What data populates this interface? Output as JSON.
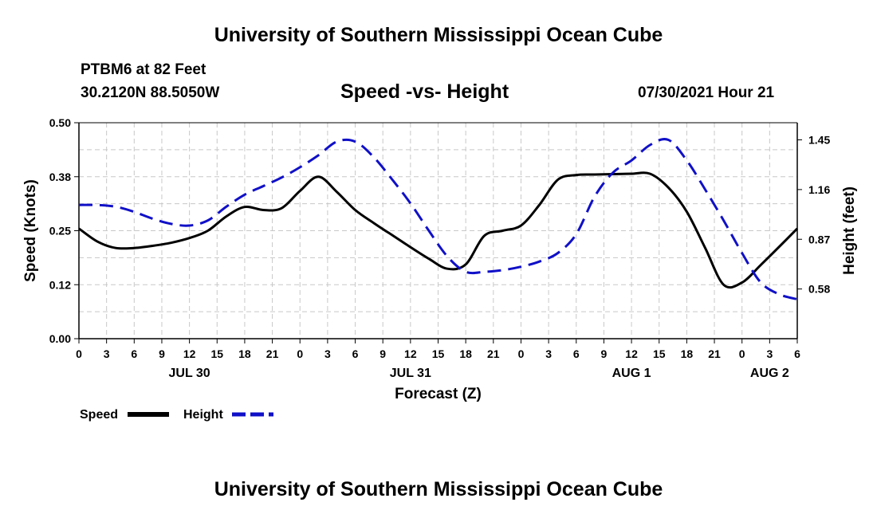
{
  "header": {
    "title": "University of Southern Mississippi Ocean Cube",
    "station": "PTBM6 at 82 Feet",
    "coords": "30.2120N  88.5050W",
    "chart_title": "Speed -vs- Height",
    "datetime": "07/30/2021 Hour 21"
  },
  "footer": {
    "title": "University of Southern Mississippi Ocean Cube"
  },
  "colors": {
    "speed": "#000000",
    "height": "#1010c8",
    "grid": "#c8c8c8"
  },
  "chart_data": {
    "type": "line",
    "title": "Speed -vs- Height",
    "xlabel": "Forecast (Z)",
    "ylabel_left": "Speed (Knots)",
    "ylabel_right": "Height (feet)",
    "x_unit": "hours from 00Z Jul 30",
    "xlim": [
      0,
      78
    ],
    "ylim_left": [
      0,
      0.5
    ],
    "ylim_right": [
      0.29,
      1.55
    ],
    "x_ticks": [
      0,
      3,
      6,
      9,
      12,
      15,
      18,
      21,
      24,
      27,
      30,
      33,
      36,
      39,
      42,
      45,
      48,
      51,
      54,
      57,
      60,
      63,
      66,
      69,
      72,
      75,
      78
    ],
    "x_tick_labels": [
      "0",
      "3",
      "6",
      "9",
      "12",
      "15",
      "18",
      "21",
      "0",
      "3",
      "6",
      "9",
      "12",
      "15",
      "18",
      "21",
      "0",
      "3",
      "6",
      "9",
      "12",
      "15",
      "18",
      "21",
      "0",
      "3",
      "6"
    ],
    "left_ticks": [
      0.0,
      0.125,
      0.25,
      0.375,
      0.5
    ],
    "left_tick_labels": [
      "0.00",
      "0.12",
      "0.25",
      "0.38",
      "0.50"
    ],
    "right_ticks": [
      0.58,
      0.87,
      1.16,
      1.45
    ],
    "right_tick_labels": [
      "0.58",
      "0.87",
      "1.16",
      "1.45"
    ],
    "dates": [
      {
        "label": "JUL 30",
        "hour": 12
      },
      {
        "label": "JUL 31",
        "hour": 36
      },
      {
        "label": "AUG 1",
        "hour": 60
      },
      {
        "label": "AUG 2",
        "hour": 75
      }
    ],
    "grid": true,
    "series": [
      {
        "name": "Speed",
        "axis": "left",
        "style": "solid",
        "x": [
          0,
          2,
          4,
          6,
          8,
          10,
          12,
          14,
          16,
          18,
          20,
          22,
          24,
          26,
          28,
          30,
          32,
          34,
          36,
          38,
          40,
          42,
          44,
          46,
          48,
          50,
          52,
          54,
          56,
          58,
          60,
          62,
          64,
          66,
          68,
          70,
          72,
          74,
          76,
          78
        ],
        "values": [
          0.255,
          0.225,
          0.21,
          0.21,
          0.215,
          0.222,
          0.233,
          0.25,
          0.283,
          0.305,
          0.298,
          0.302,
          0.342,
          0.375,
          0.34,
          0.298,
          0.268,
          0.24,
          0.212,
          0.185,
          0.162,
          0.172,
          0.238,
          0.25,
          0.262,
          0.31,
          0.368,
          0.379,
          0.38,
          0.381,
          0.382,
          0.382,
          0.35,
          0.294,
          0.21,
          0.125,
          0.13,
          0.17,
          0.212,
          0.255
        ]
      },
      {
        "name": "Height",
        "axis": "right",
        "style": "dashed",
        "x": [
          0,
          2,
          4,
          6,
          8,
          10,
          12,
          14,
          16,
          18,
          20,
          22,
          24,
          26,
          28,
          30,
          32,
          34,
          36,
          38,
          40,
          42,
          44,
          46,
          48,
          50,
          52,
          54,
          56,
          58,
          60,
          62,
          64,
          66,
          68,
          70,
          72,
          74,
          76,
          78
        ],
        "values": [
          1.07,
          1.07,
          1.06,
          1.03,
          0.99,
          0.96,
          0.95,
          0.98,
          1.06,
          1.13,
          1.18,
          1.23,
          1.29,
          1.36,
          1.44,
          1.44,
          1.35,
          1.22,
          1.08,
          0.92,
          0.77,
          0.68,
          0.68,
          0.69,
          0.71,
          0.74,
          0.79,
          0.9,
          1.12,
          1.26,
          1.33,
          1.42,
          1.45,
          1.33,
          1.16,
          0.98,
          0.79,
          0.62,
          0.55,
          0.52
        ]
      }
    ]
  },
  "legend": {
    "speed_label": "Speed",
    "height_label": "Height"
  }
}
